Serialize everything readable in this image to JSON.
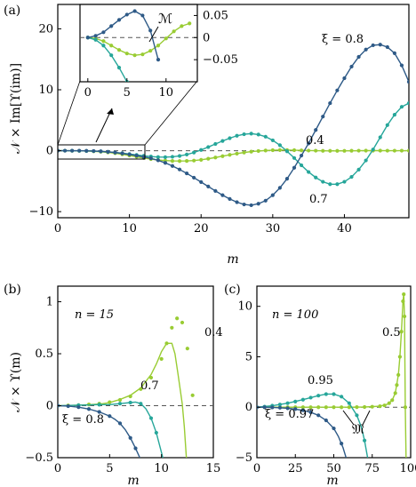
{
  "colors": {
    "dark": "#2e5a87",
    "teal": "#26a69a",
    "lime": "#99cc33"
  },
  "chart_data": [
    {
      "id": "a",
      "panel_label": "(a)",
      "type": "line",
      "xlabel": "m",
      "ylabel": "𝒩 × Im[ϒ(im)]",
      "xlim": [
        0,
        49
      ],
      "ylim": [
        -11,
        24
      ],
      "xticks": [
        "0",
        "10",
        "20",
        "30",
        "40"
      ],
      "yticks": [
        "−10",
        "0",
        "10",
        "20"
      ],
      "zero_line": true,
      "series_xi_08": {
        "name": "ξ = 0.8",
        "color": "#2e5a87",
        "x_step": 1,
        "x_start": 0,
        "y": [
          0,
          0,
          0,
          0,
          -0.02,
          -0.05,
          -0.1,
          -0.19,
          -0.3,
          -0.45,
          -0.62,
          -0.81,
          -1.02,
          -1.25,
          -1.58,
          -2.0,
          -2.5,
          -3.08,
          -3.72,
          -4.43,
          -5.15,
          -5.88,
          -6.6,
          -7.3,
          -7.92,
          -8.45,
          -8.82,
          -8.95,
          -8.7,
          -8.2,
          -7.3,
          -6.1,
          -4.6,
          -2.8,
          -0.8,
          1.2,
          3.4,
          5.6,
          7.8,
          9.9,
          11.9,
          13.8,
          15.4,
          16.6,
          17.3,
          17.4,
          17.0,
          16.0,
          14.0,
          11.3,
          7.5,
          2.4,
          -3.5,
          -10.0
        ]
      },
      "series_xi_07": {
        "name": "0.7",
        "color": "#26a69a",
        "x_step": 1,
        "x_start": 0,
        "y": [
          0,
          0,
          -0.01,
          -0.02,
          -0.04,
          -0.07,
          -0.12,
          -0.19,
          -0.29,
          -0.41,
          -0.55,
          -0.7,
          -0.84,
          -0.96,
          -1.04,
          -1.06,
          -1.0,
          -0.86,
          -0.63,
          -0.3,
          0.12,
          0.6,
          1.1,
          1.6,
          2.05,
          2.45,
          2.7,
          2.8,
          2.65,
          2.3,
          1.7,
          0.9,
          -0.1,
          -1.2,
          -2.4,
          -3.5,
          -4.4,
          -5.1,
          -5.5,
          -5.5,
          -5.1,
          -4.3,
          -3.1,
          -1.6,
          0.2,
          2.2,
          4.2,
          5.9,
          7.2,
          7.8
        ]
      },
      "series_xi_04": {
        "name": "0.4",
        "color": "#99cc33",
        "x_step": 1,
        "x_start": 0,
        "y": [
          0,
          0,
          -0.01,
          -0.02,
          -0.05,
          -0.1,
          -0.18,
          -0.28,
          -0.42,
          -0.6,
          -0.8,
          -1.0,
          -1.2,
          -1.38,
          -1.52,
          -1.62,
          -1.68,
          -1.7,
          -1.68,
          -1.62,
          -1.5,
          -1.32,
          -1.12,
          -0.9,
          -0.68,
          -0.48,
          -0.3,
          -0.15,
          -0.05,
          0.03,
          0.08,
          0.1,
          0.1,
          0.08,
          0.05,
          0.02,
          0,
          -0.02,
          -0.03,
          -0.03,
          -0.02,
          -0.01,
          0,
          0.01,
          0.01,
          0.01,
          0,
          0,
          0,
          0
        ]
      },
      "inset": {
        "xlim": [
          -1,
          14
        ],
        "ylim": [
          -0.1,
          0.075
        ],
        "xticks": [
          "0",
          "5",
          "10"
        ],
        "yticks": [
          "0.05",
          "0",
          "−0.05"
        ],
        "annotation": "ℳ",
        "series": [
          {
            "name": "ξ = 0.8",
            "color": "#2e5a87",
            "x": [
              0,
              1,
              2,
              3,
              4,
              5,
              6,
              7,
              8,
              9
            ],
            "y": [
              0,
              0.004,
              0.012,
              0.026,
              0.04,
              0.052,
              0.06,
              0.05,
              0.016,
              -0.05
            ]
          },
          {
            "name": "0.7",
            "color": "#26a69a",
            "x": [
              0,
              1,
              2,
              3,
              4,
              5,
              6
            ],
            "y": [
              0,
              -0.005,
              -0.018,
              -0.04,
              -0.068,
              -0.1,
              -0.14
            ]
          },
          {
            "name": "0.4",
            "color": "#99cc33",
            "x": [
              0,
              1,
              2,
              3,
              4,
              5,
              6,
              7,
              8,
              9,
              10,
              11,
              12,
              13
            ],
            "y": [
              0,
              -0.002,
              -0.008,
              -0.018,
              -0.028,
              -0.036,
              -0.04,
              -0.038,
              -0.03,
              -0.018,
              -0.002,
              0.014,
              0.026,
              0.032
            ]
          }
        ]
      },
      "labels": [
        {
          "text": "ξ = 0.8"
        },
        {
          "text": "0.7"
        },
        {
          "text": "0.4"
        }
      ]
    },
    {
      "id": "b",
      "panel_label": "(b)",
      "type": "line",
      "n_label": "n = 15",
      "xlabel": "m",
      "ylabel": "𝒩 × ϒ(m)",
      "xlim": [
        0,
        15
      ],
      "ylim": [
        -0.5,
        1.15
      ],
      "xticks": [
        "0",
        "5",
        "10",
        "15"
      ],
      "yticks": [
        "−0.5",
        "0",
        "0.5",
        "1"
      ],
      "zero_line": true,
      "series": [
        {
          "name": "ξ = 0.8",
          "color": "#2e5a87",
          "line_x": [
            0,
            1,
            2,
            3,
            4,
            5,
            5.5,
            6,
            6.5,
            7,
            7.5,
            8.0
          ],
          "line_y": [
            0,
            -0.004,
            -0.014,
            -0.032,
            -0.06,
            -0.1,
            -0.13,
            -0.17,
            -0.23,
            -0.31,
            -0.41,
            -0.52
          ],
          "dots_x": [
            0,
            1,
            2,
            3,
            4,
            5,
            6,
            7,
            7.5
          ],
          "dots_y": [
            0,
            -0.004,
            -0.014,
            -0.032,
            -0.06,
            -0.1,
            -0.17,
            -0.31,
            -0.41
          ]
        },
        {
          "name": "0.7",
          "color": "#26a69a",
          "line_x": [
            0,
            2,
            4,
            5,
            6,
            7,
            7.5,
            8,
            8.5,
            9,
            9.5,
            10,
            10.2
          ],
          "line_y": [
            0,
            0.005,
            0.01,
            0.01,
            0.02,
            0.03,
            0.035,
            0.02,
            -0.03,
            -0.12,
            -0.26,
            -0.45,
            -0.53
          ],
          "dots_x": [
            0,
            2,
            4,
            6,
            7,
            8,
            9,
            9.5
          ],
          "dots_y": [
            0,
            0.005,
            0.01,
            0.02,
            0.03,
            0.02,
            -0.12,
            -0.26
          ]
        },
        {
          "name": "0.4",
          "color": "#99cc33",
          "line_x": [
            0,
            2,
            4,
            5,
            6,
            7,
            8,
            9,
            9.5,
            10,
            10.5,
            11,
            11.3,
            11.6,
            12,
            12.2,
            12.4
          ],
          "line_y": [
            0,
            0.005,
            0.015,
            0.03,
            0.06,
            0.1,
            0.17,
            0.3,
            0.4,
            0.52,
            0.6,
            0.6,
            0.5,
            0.3,
            0.02,
            -0.2,
            -0.5
          ],
          "dots_x": [
            0,
            1,
            2,
            3,
            4,
            5,
            6,
            7,
            8,
            9,
            10,
            10.5,
            11,
            11.5,
            12,
            12.5,
            13
          ],
          "dots_y": [
            0,
            0.002,
            0.006,
            0.012,
            0.02,
            0.034,
            0.056,
            0.09,
            0.16,
            0.27,
            0.45,
            0.6,
            0.75,
            0.84,
            0.8,
            0.55,
            0.1
          ]
        }
      ],
      "labels": [
        {
          "text": "ξ = 0.8"
        },
        {
          "text": "0.7"
        },
        {
          "text": "0.4"
        }
      ]
    },
    {
      "id": "c",
      "panel_label": "(c)",
      "type": "line",
      "n_label": "n = 100",
      "xlabel": "m",
      "xlim": [
        0,
        100
      ],
      "ylim": [
        -5,
        12
      ],
      "xticks": [
        "0",
        "25",
        "50",
        "75",
        "100"
      ],
      "yticks": [
        "−5",
        "0",
        "5",
        "10"
      ],
      "zero_line": true,
      "annotation": "𝔐",
      "series": [
        {
          "name": "ξ = 0.97",
          "color": "#2e5a87",
          "line_x": [
            0,
            10,
            20,
            30,
            35,
            40,
            45,
            50,
            53,
            56,
            58
          ],
          "line_y": [
            0,
            -0.02,
            -0.1,
            -0.3,
            -0.5,
            -0.8,
            -1.3,
            -2.1,
            -2.9,
            -4.0,
            -5.0
          ],
          "dots_x": [
            0,
            5,
            10,
            15,
            20,
            25,
            30,
            35,
            40,
            45,
            50,
            55
          ],
          "dots_y": [
            0,
            -0.005,
            -0.02,
            -0.05,
            -0.1,
            -0.18,
            -0.3,
            -0.5,
            -0.8,
            -1.3,
            -2.1,
            -3.6
          ]
        },
        {
          "name": "0.95",
          "color": "#26a69a",
          "line_x": [
            0,
            10,
            20,
            30,
            40,
            45,
            50,
            55,
            60,
            65,
            68,
            70,
            72
          ],
          "line_y": [
            0,
            0.15,
            0.4,
            0.75,
            1.15,
            1.3,
            1.3,
            1.05,
            0.4,
            -0.8,
            -2.0,
            -3.3,
            -5.0
          ],
          "dots_x": [
            0,
            5,
            10,
            15,
            20,
            25,
            30,
            35,
            40,
            45,
            50,
            55,
            60,
            65,
            70
          ],
          "dots_y": [
            0,
            0.06,
            0.15,
            0.27,
            0.4,
            0.56,
            0.75,
            0.95,
            1.15,
            1.3,
            1.3,
            1.05,
            0.4,
            -0.8,
            -3.3
          ]
        },
        {
          "name": "0.5",
          "color": "#99cc33",
          "line_x": [
            0,
            20,
            40,
            60,
            70,
            80,
            85,
            88,
            90,
            92,
            93,
            94,
            95,
            95.5,
            96,
            96.5,
            97
          ],
          "line_y": [
            0,
            0,
            0,
            0,
            0.02,
            0.1,
            0.3,
            0.7,
            1.4,
            3.2,
            5.0,
            7.5,
            10.5,
            11.2,
            9.0,
            0,
            -5.0
          ],
          "dots_x": [
            0,
            5,
            10,
            15,
            20,
            25,
            30,
            35,
            40,
            45,
            50,
            55,
            60,
            65,
            70,
            75,
            80,
            83,
            86,
            88,
            90,
            91,
            92,
            93,
            94,
            95,
            95.5,
            96,
            96.5
          ],
          "dots_y": [
            0,
            0,
            0,
            0,
            0,
            0,
            0,
            0,
            0,
            0,
            0,
            0,
            0,
            0.01,
            0.02,
            0.05,
            0.1,
            0.18,
            0.4,
            0.7,
            1.4,
            2.2,
            3.2,
            5.0,
            7.5,
            10.5,
            11.2,
            9.0,
            0
          ]
        }
      ],
      "labels": [
        {
          "text": "ξ = 0.97"
        },
        {
          "text": "0.95"
        },
        {
          "text": "0.5"
        }
      ]
    }
  ]
}
